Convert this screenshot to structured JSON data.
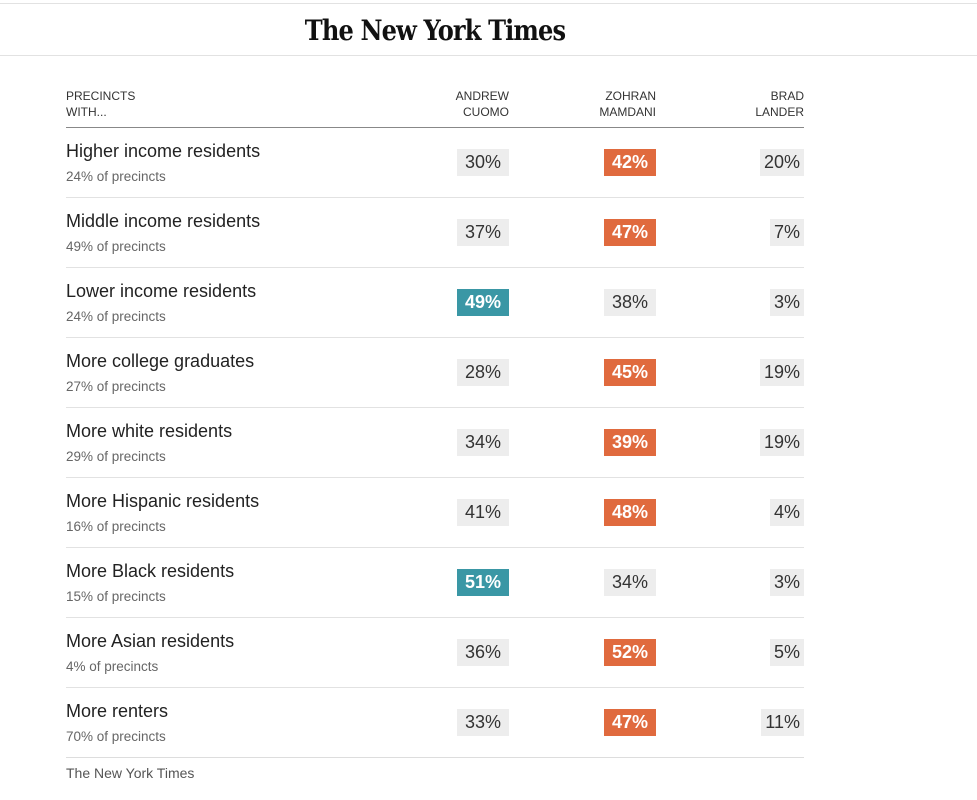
{
  "header": {
    "logo": "The New York Times"
  },
  "table": {
    "columns": [
      "Precincts with…",
      "Andrew Cuomo",
      "Zohran Mamdani",
      "Brad Lander"
    ],
    "column_lines": [
      [
        "PRECINCTS",
        "WITH..."
      ],
      [
        "ANDREW",
        "CUOMO"
      ],
      [
        "ZOHRAN",
        "MAMDANI"
      ],
      [
        "BRAD",
        "LANDER"
      ]
    ],
    "colors": {
      "cuomo_win": "#3a97a5",
      "mamdani_win": "#e06a3e",
      "neutral": "#ededed"
    },
    "rows": [
      {
        "label": "Higher income residents",
        "sub": "24% of precincts",
        "cuomo": "30%",
        "mamdani": "42%",
        "lander": "20%",
        "winner": "mamdani"
      },
      {
        "label": "Middle income residents",
        "sub": "49% of precincts",
        "cuomo": "37%",
        "mamdani": "47%",
        "lander": "7%",
        "winner": "mamdani"
      },
      {
        "label": "Lower income residents",
        "sub": "24% of precincts",
        "cuomo": "49%",
        "mamdani": "38%",
        "lander": "3%",
        "winner": "cuomo"
      },
      {
        "label": "More college graduates",
        "sub": "27% of precincts",
        "cuomo": "28%",
        "mamdani": "45%",
        "lander": "19%",
        "winner": "mamdani"
      },
      {
        "label": "More white residents",
        "sub": "29% of precincts",
        "cuomo": "34%",
        "mamdani": "39%",
        "lander": "19%",
        "winner": "mamdani"
      },
      {
        "label": "More Hispanic residents",
        "sub": "16% of precincts",
        "cuomo": "41%",
        "mamdani": "48%",
        "lander": "4%",
        "winner": "mamdani"
      },
      {
        "label": "More Black residents",
        "sub": "15% of precincts",
        "cuomo": "51%",
        "mamdani": "34%",
        "lander": "3%",
        "winner": "cuomo"
      },
      {
        "label": "More Asian residents",
        "sub": "4% of precincts",
        "cuomo": "36%",
        "mamdani": "52%",
        "lander": "5%",
        "winner": "mamdani"
      },
      {
        "label": "More renters",
        "sub": "70% of precincts",
        "cuomo": "33%",
        "mamdani": "47%",
        "lander": "11%",
        "winner": "mamdani"
      }
    ]
  },
  "source": "The New York Times"
}
